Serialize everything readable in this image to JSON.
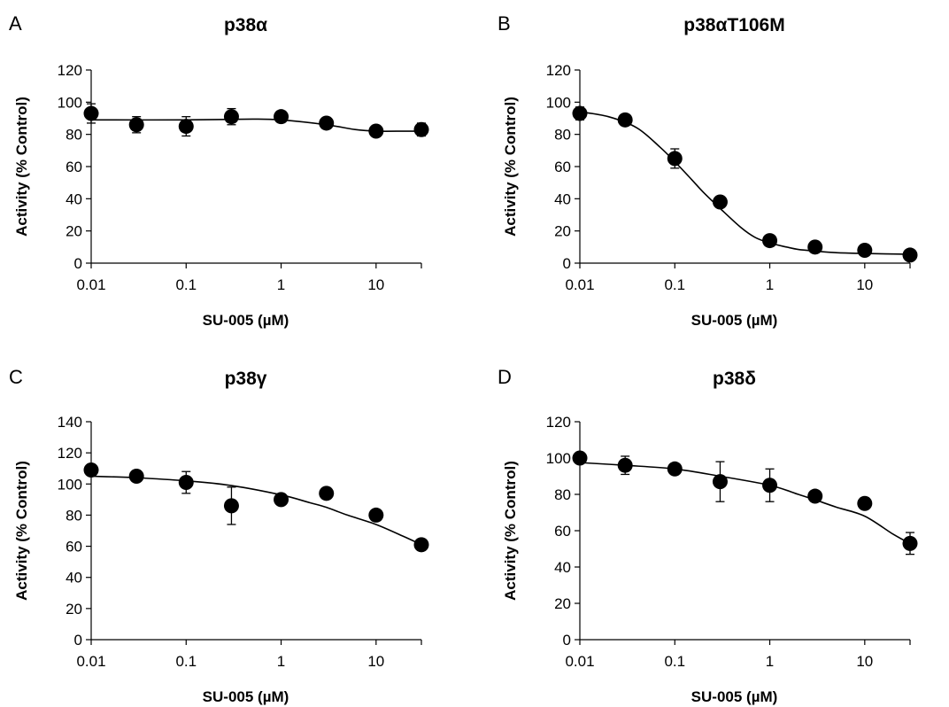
{
  "chart_data": [
    {
      "type": "scatter",
      "panel": "A",
      "title": "p38α",
      "xlabel": "SU-005 (µM)",
      "ylabel": "Activity (% Control)",
      "x_scale": "log",
      "xlim": [
        0.01,
        30
      ],
      "ylim": [
        0,
        120
      ],
      "x_ticks": [
        "0.01",
        "0.1",
        "1",
        "10"
      ],
      "y_ticks": [
        "0",
        "20",
        "40",
        "60",
        "80",
        "100",
        "120"
      ],
      "grid": false,
      "legend": "none",
      "series": [
        {
          "x": [
            0.01,
            0.03,
            0.1,
            0.3,
            1,
            3,
            10,
            30
          ],
          "y": [
            93,
            86,
            85,
            91,
            91,
            87,
            82,
            83
          ],
          "err": [
            6,
            5,
            6,
            5,
            2,
            3,
            3,
            4
          ],
          "fit": [
            [
              0.01,
              89
            ],
            [
              0.1,
              89
            ],
            [
              0.5,
              89.5
            ],
            [
              1,
              89
            ],
            [
              3,
              86
            ],
            [
              6,
              83
            ],
            [
              10,
              82
            ],
            [
              20,
              82
            ],
            [
              30,
              82
            ]
          ]
        }
      ]
    },
    {
      "type": "scatter",
      "panel": "B",
      "title": "p38αT106M",
      "xlabel": "SU-005 (µM)",
      "ylabel": "Activity (% Control)",
      "x_scale": "log",
      "xlim": [
        0.01,
        30
      ],
      "ylim": [
        0,
        120
      ],
      "x_ticks": [
        "0.01",
        "0.1",
        "1",
        "10"
      ],
      "y_ticks": [
        "0",
        "20",
        "40",
        "60",
        "80",
        "100",
        "120"
      ],
      "grid": false,
      "legend": "none",
      "series": [
        {
          "x": [
            0.01,
            0.03,
            0.1,
            0.3,
            1,
            3,
            10,
            30
          ],
          "y": [
            93,
            89,
            65,
            38,
            14,
            10,
            8,
            5
          ],
          "err": [
            4,
            3,
            6,
            3,
            2,
            2,
            2,
            2
          ],
          "fit": [
            [
              0.01,
              94
            ],
            [
              0.02,
              91
            ],
            [
              0.04,
              84
            ],
            [
              0.07,
              72
            ],
            [
              0.1,
              63
            ],
            [
              0.15,
              52
            ],
            [
              0.2,
              44
            ],
            [
              0.3,
              34
            ],
            [
              0.5,
              22
            ],
            [
              0.7,
              16
            ],
            [
              1,
              12.5
            ],
            [
              1.5,
              10
            ],
            [
              2,
              8.5
            ],
            [
              3,
              7.5
            ],
            [
              5,
              6.5
            ],
            [
              10,
              6
            ],
            [
              30,
              5.5
            ]
          ]
        }
      ]
    },
    {
      "type": "scatter",
      "panel": "C",
      "title": "p38γ",
      "xlabel": "SU-005 (µM)",
      "ylabel": "Activity (% Control)",
      "x_scale": "log",
      "xlim": [
        0.01,
        30
      ],
      "ylim": [
        0,
        140
      ],
      "x_ticks": [
        "0.01",
        "0.1",
        "1",
        "10"
      ],
      "y_ticks": [
        "0",
        "20",
        "40",
        "60",
        "80",
        "100",
        "120",
        "140"
      ],
      "grid": false,
      "legend": "none",
      "series": [
        {
          "x": [
            0.01,
            0.03,
            0.1,
            0.3,
            1,
            3,
            10,
            30
          ],
          "y": [
            109,
            105,
            101,
            86,
            90,
            94,
            80,
            61
          ],
          "err": [
            3,
            3,
            7,
            12,
            3,
            3,
            3,
            3
          ],
          "fit": [
            [
              0.01,
              105
            ],
            [
              0.03,
              104
            ],
            [
              0.1,
              102
            ],
            [
              0.3,
              99
            ],
            [
              1,
              93
            ],
            [
              2,
              88
            ],
            [
              3,
              85
            ],
            [
              5,
              80
            ],
            [
              10,
              74
            ],
            [
              20,
              66
            ],
            [
              30,
              61
            ]
          ]
        }
      ]
    },
    {
      "type": "scatter",
      "panel": "D",
      "title": "p38δ",
      "xlabel": "SU-005 (µM)",
      "ylabel": "Activity (% Control)",
      "x_scale": "log",
      "xlim": [
        0.01,
        30
      ],
      "ylim": [
        0,
        120
      ],
      "x_ticks": [
        "0.01",
        "0.1",
        "1",
        "10"
      ],
      "y_ticks": [
        "0",
        "20",
        "40",
        "60",
        "80",
        "100",
        "120"
      ],
      "grid": false,
      "legend": "none",
      "series": [
        {
          "x": [
            0.01,
            0.03,
            0.1,
            0.3,
            1,
            3,
            10,
            30
          ],
          "y": [
            100,
            96,
            94,
            87,
            85,
            79,
            75,
            53
          ],
          "err": [
            3,
            5,
            3,
            11,
            9,
            3,
            3,
            6
          ],
          "fit": [
            [
              0.01,
              97.5
            ],
            [
              0.03,
              96
            ],
            [
              0.1,
              94
            ],
            [
              0.3,
              90
            ],
            [
              1,
              85
            ],
            [
              2,
              80
            ],
            [
              3,
              77
            ],
            [
              5,
              73
            ],
            [
              10,
              68
            ],
            [
              20,
              58
            ],
            [
              30,
              53
            ]
          ]
        }
      ]
    }
  ]
}
